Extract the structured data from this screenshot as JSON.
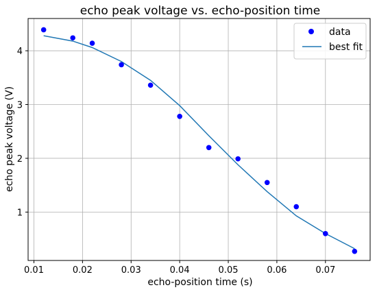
{
  "chart_data": {
    "type": "scatter",
    "title": "echo peak voltage vs. echo-position time",
    "xlabel": "echo-position time (s)",
    "ylabel": "echo peak voltage (V)",
    "xlim": [
      0.0088,
      0.0792
    ],
    "ylim": [
      0.1,
      4.6
    ],
    "xticks": [
      0.01,
      0.02,
      0.03,
      0.04,
      0.05,
      0.06,
      0.07
    ],
    "xtick_labels": [
      "0.01",
      "0.02",
      "0.03",
      "0.04",
      "0.05",
      "0.06",
      "0.07"
    ],
    "yticks": [
      1,
      2,
      3,
      4
    ],
    "ytick_labels": [
      "1",
      "2",
      "3",
      "4"
    ],
    "grid": true,
    "legend_position": "top-right",
    "series": [
      {
        "name": "data",
        "kind": "scatter",
        "color": "#0000ff",
        "x": [
          0.012,
          0.018,
          0.022,
          0.028,
          0.034,
          0.04,
          0.046,
          0.052,
          0.058,
          0.064,
          0.07,
          0.076
        ],
        "y": [
          4.39,
          4.24,
          4.14,
          3.74,
          3.36,
          2.78,
          2.2,
          1.99,
          1.55,
          1.1,
          0.6,
          0.27
        ]
      },
      {
        "name": "best fit",
        "kind": "line",
        "color": "#1f77b4",
        "x": [
          0.012,
          0.018,
          0.022,
          0.028,
          0.034,
          0.04,
          0.046,
          0.052,
          0.058,
          0.064,
          0.07,
          0.076
        ],
        "y": [
          4.28,
          4.18,
          4.06,
          3.8,
          3.45,
          2.98,
          2.42,
          1.88,
          1.38,
          0.93,
          0.6,
          0.32
        ]
      }
    ]
  }
}
